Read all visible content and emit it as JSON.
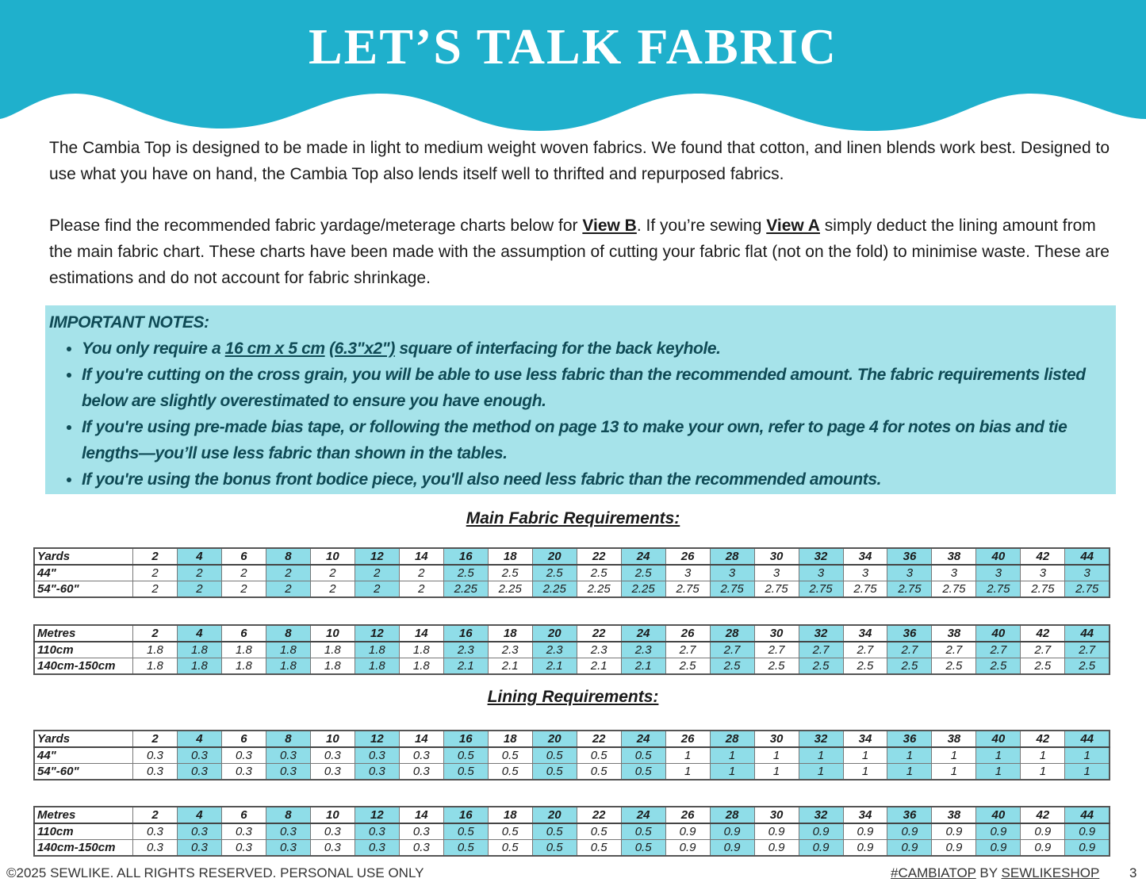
{
  "header": {
    "title": "LET’S TALK FABRIC",
    "color": "#1fb0cc"
  },
  "intro": {
    "p1": "The Cambia Top is designed to be made in light to medium weight woven fabrics. We found that cotton, and linen blends work best. Designed to use what you have on hand, the Cambia Top also lends itself well to thrifted and repurposed fabrics.",
    "p2_a": "Please find the recommended fabric yardage/meterage charts below for ",
    "p2_viewb": "View B",
    "p2_b": ". If you’re sewing ",
    "p2_viewa": "View A",
    "p2_c": " simply deduct the lining amount from the main fabric chart. These charts have been made with the assumption of cutting your fabric flat (not on the fold) to minimise waste. These are estimations and do not account for fabric shrinkage."
  },
  "notes": {
    "heading": "IMPORTANT NOTES:",
    "bg_color": "#a6e3ea",
    "n1_a": "You only require a ",
    "n1_link1": "16 cm x  5 cm",
    "n1_space": " ",
    "n1_link2": "(6.3\"x2\")",
    "n1_b": " square of interfacing for the back keyhole.",
    "n2": "If you're cutting on the cross grain, you will be able to use less fabric than the recommended amount. The fabric requirements listed below are slightly overestimated to ensure you have enough.",
    "n3": "If you're using pre-made bias tape, or following the method on page 13 to make your own, refer to page 4 for notes on bias and tie lengths—you’ll use less fabric than shown in the tables.",
    "n4": "If you're using the bonus front bodice piece, you'll also need less fabric than the recommended amounts."
  },
  "main_title": "Main Fabric Requirements:",
  "lining_title": "Lining Requirements:",
  "highlight_color": "#8fdde8",
  "tables": {
    "main_yards": {
      "header": [
        "Yards",
        "2",
        "4",
        "6",
        "8",
        "10",
        "12",
        "14",
        "16",
        "18",
        "20",
        "22",
        "24",
        "26",
        "28",
        "30",
        "32",
        "34",
        "36",
        "38",
        "40",
        "42",
        "44"
      ],
      "rows": [
        [
          "44\"",
          "2",
          "2",
          "2",
          "2",
          "2",
          "2",
          "2",
          "2.5",
          "2.5",
          "2.5",
          "2.5",
          "2.5",
          "3",
          "3",
          "3",
          "3",
          "3",
          "3",
          "3",
          "3",
          "3",
          "3"
        ],
        [
          "54\"-60\"",
          "2",
          "2",
          "2",
          "2",
          "2",
          "2",
          "2",
          "2.25",
          "2.25",
          "2.25",
          "2.25",
          "2.25",
          "2.75",
          "2.75",
          "2.75",
          "2.75",
          "2.75",
          "2.75",
          "2.75",
          "2.75",
          "2.75",
          "2.75"
        ]
      ]
    },
    "main_metres": {
      "header": [
        "Metres",
        "2",
        "4",
        "6",
        "8",
        "10",
        "12",
        "14",
        "16",
        "18",
        "20",
        "22",
        "24",
        "26",
        "28",
        "30",
        "32",
        "34",
        "36",
        "38",
        "40",
        "42",
        "44"
      ],
      "rows": [
        [
          "110cm",
          "1.8",
          "1.8",
          "1.8",
          "1.8",
          "1.8",
          "1.8",
          "1.8",
          "2.3",
          "2.3",
          "2.3",
          "2.3",
          "2.3",
          "2.7",
          "2.7",
          "2.7",
          "2.7",
          "2.7",
          "2.7",
          "2.7",
          "2.7",
          "2.7",
          "2.7"
        ],
        [
          "140cm-150cm",
          "1.8",
          "1.8",
          "1.8",
          "1.8",
          "1.8",
          "1.8",
          "1.8",
          "2.1",
          "2.1",
          "2.1",
          "2.1",
          "2.1",
          "2.5",
          "2.5",
          "2.5",
          "2.5",
          "2.5",
          "2.5",
          "2.5",
          "2.5",
          "2.5",
          "2.5"
        ]
      ]
    },
    "lining_yards": {
      "header": [
        "Yards",
        "2",
        "4",
        "6",
        "8",
        "10",
        "12",
        "14",
        "16",
        "18",
        "20",
        "22",
        "24",
        "26",
        "28",
        "30",
        "32",
        "34",
        "36",
        "38",
        "40",
        "42",
        "44"
      ],
      "rows": [
        [
          "44\"",
          "0.3",
          "0.3",
          "0.3",
          "0.3",
          "0.3",
          "0.3",
          "0.3",
          "0.5",
          "0.5",
          "0.5",
          "0.5",
          "0.5",
          "1",
          "1",
          "1",
          "1",
          "1",
          "1",
          "1",
          "1",
          "1",
          "1"
        ],
        [
          "54\"-60\"",
          "0.3",
          "0.3",
          "0.3",
          "0.3",
          "0.3",
          "0.3",
          "0.3",
          "0.5",
          "0.5",
          "0.5",
          "0.5",
          "0.5",
          "1",
          "1",
          "1",
          "1",
          "1",
          "1",
          "1",
          "1",
          "1",
          "1"
        ]
      ]
    },
    "lining_metres": {
      "header": [
        "Metres",
        "2",
        "4",
        "6",
        "8",
        "10",
        "12",
        "14",
        "16",
        "18",
        "20",
        "22",
        "24",
        "26",
        "28",
        "30",
        "32",
        "34",
        "36",
        "38",
        "40",
        "42",
        "44"
      ],
      "rows": [
        [
          "110cm",
          "0.3",
          "0.3",
          "0.3",
          "0.3",
          "0.3",
          "0.3",
          "0.3",
          "0.5",
          "0.5",
          "0.5",
          "0.5",
          "0.5",
          "0.9",
          "0.9",
          "0.9",
          "0.9",
          "0.9",
          "0.9",
          "0.9",
          "0.9",
          "0.9",
          "0.9"
        ],
        [
          "140cm-150cm",
          "0.3",
          "0.3",
          "0.3",
          "0.3",
          "0.3",
          "0.3",
          "0.3",
          "0.5",
          "0.5",
          "0.5",
          "0.5",
          "0.5",
          "0.9",
          "0.9",
          "0.9",
          "0.9",
          "0.9",
          "0.9",
          "0.9",
          "0.9",
          "0.9",
          "0.9"
        ]
      ]
    }
  },
  "footer": {
    "copyright": "©2025 SEWLIKE. ALL RIGHTS RESERVED. PERSONAL USE ONLY",
    "hashtag": "#CAMBIATOP",
    "by": " BY ",
    "shop": "SEWLIKESHOP",
    "page": "3"
  }
}
